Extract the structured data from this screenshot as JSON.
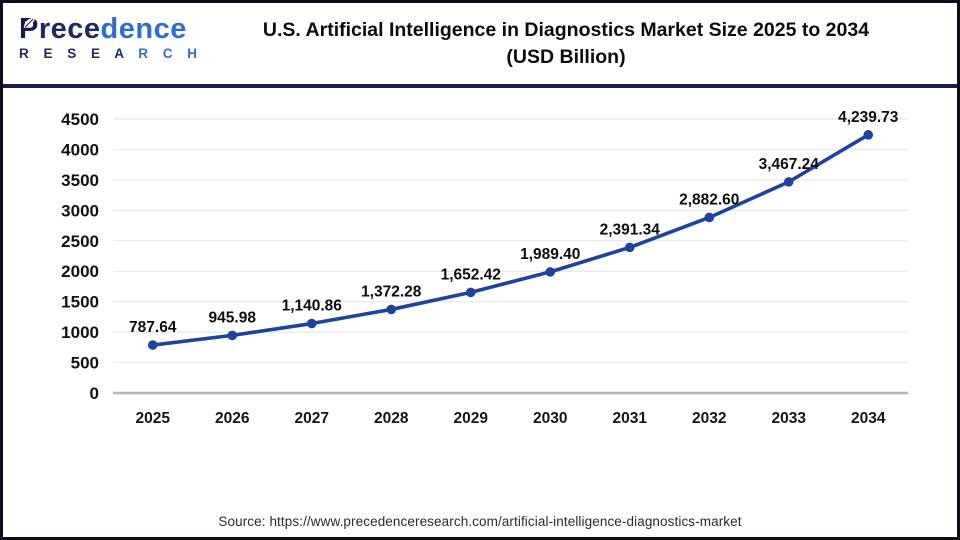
{
  "header": {
    "logo": {
      "p": "P",
      "brand_part1": "rece",
      "brand_part2": "dence",
      "sub_part1": "R E S E A ",
      "sub_part2": "R C H"
    },
    "title_line1": "U.S. Artificial Intelligence in Diagnostics Market Size 2025 to 2034",
    "title_line2": "(USD Billion)"
  },
  "footer": {
    "source": "Source: https://www.precedenceresearch.com/artificial-intelligence-diagnostics-market"
  },
  "colors": {
    "line": "#1e429e",
    "separator": "#1a2148",
    "logo_navy": "#1b2a63",
    "logo_blue": "#2f6dd0",
    "gridline": "#eaebed",
    "axis_line": "#b3b6ba"
  },
  "chart_data": {
    "type": "line",
    "title": "U.S. Artificial Intelligence in Diagnostics Market Size 2025 to 2034 (USD Billion)",
    "categories": [
      "2025",
      "2026",
      "2027",
      "2028",
      "2029",
      "2030",
      "2031",
      "2032",
      "2033",
      "2034"
    ],
    "values": [
      787.64,
      945.98,
      1140.86,
      1372.28,
      1652.42,
      1989.4,
      2391.34,
      2882.6,
      3467.24,
      4239.73
    ],
    "labels": [
      "787.64",
      "945.98",
      "1,140.86",
      "1,372.28",
      "1,652.42",
      "1,989.40",
      "2,391.34",
      "2,882.60",
      "3,467.24",
      "4,239.73"
    ],
    "xlabel": "",
    "ylabel": "",
    "ylim": [
      0,
      4500
    ],
    "ytick_step": 500,
    "grid": true,
    "legend": "none",
    "line_color": "#1e429e",
    "marker": "circle"
  }
}
